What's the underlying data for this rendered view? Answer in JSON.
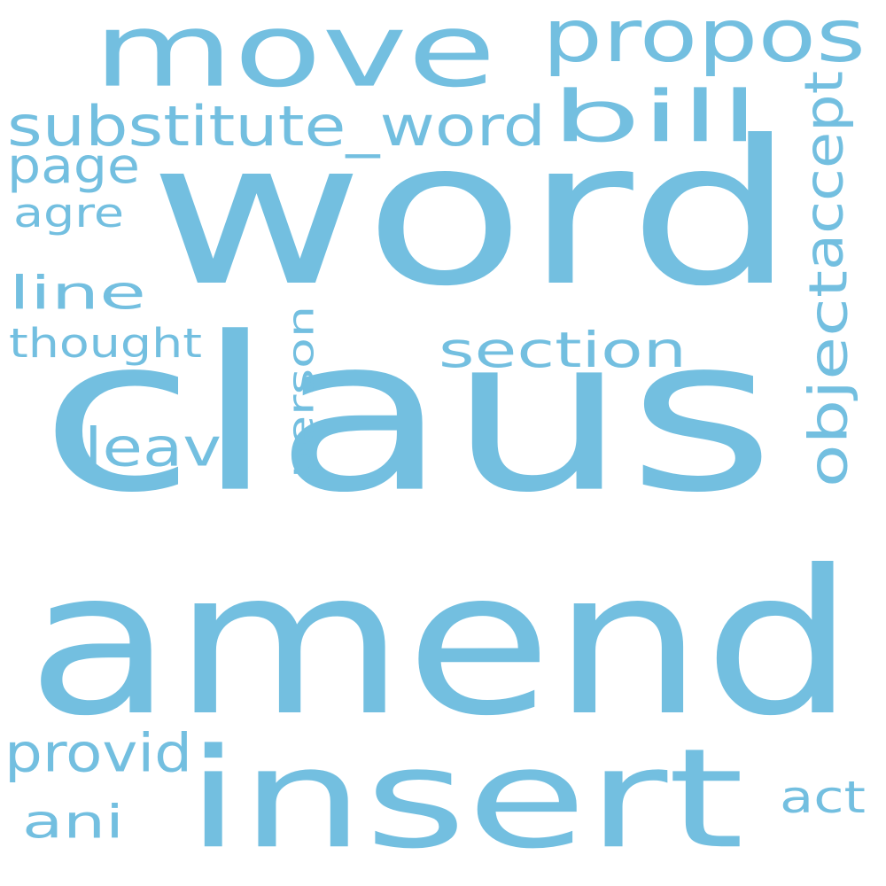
{
  "word_cloud": {
    "color": "#73bfe0",
    "background": "#ffffff",
    "words": [
      {
        "text": "amend",
        "orientation": "horizontal"
      },
      {
        "text": "claus",
        "orientation": "horizontal"
      },
      {
        "text": "word",
        "orientation": "horizontal"
      },
      {
        "text": "insert",
        "orientation": "horizontal"
      },
      {
        "text": "move",
        "orientation": "horizontal"
      },
      {
        "text": "propos",
        "orientation": "horizontal"
      },
      {
        "text": "bill",
        "orientation": "horizontal"
      },
      {
        "text": "substitute_word",
        "orientation": "horizontal"
      },
      {
        "text": "page",
        "orientation": "horizontal"
      },
      {
        "text": "agre",
        "orientation": "horizontal"
      },
      {
        "text": "line",
        "orientation": "horizontal"
      },
      {
        "text": "thought",
        "orientation": "horizontal"
      },
      {
        "text": "section",
        "orientation": "horizontal"
      },
      {
        "text": "leav",
        "orientation": "horizontal"
      },
      {
        "text": "person",
        "orientation": "vertical"
      },
      {
        "text": "accept",
        "orientation": "vertical"
      },
      {
        "text": "object",
        "orientation": "vertical"
      },
      {
        "text": "provid",
        "orientation": "horizontal"
      },
      {
        "text": "ani",
        "orientation": "horizontal"
      },
      {
        "text": "act",
        "orientation": "horizontal"
      }
    ]
  }
}
